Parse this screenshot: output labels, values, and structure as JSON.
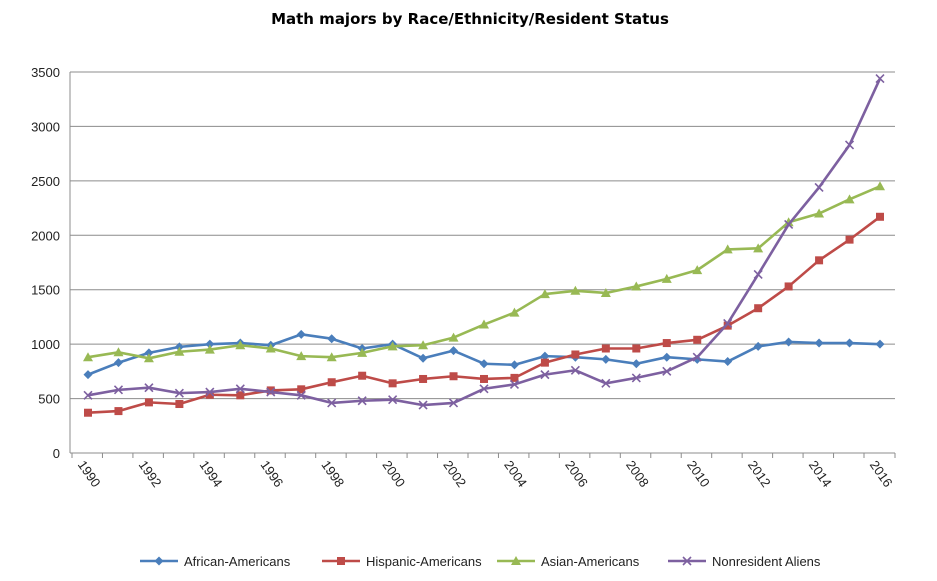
{
  "chart_data": {
    "type": "line",
    "title": "Math majors by Race/Ethnicity/Resident Status",
    "xlabel": "",
    "ylabel": "",
    "ylim": [
      0,
      3500
    ],
    "yticks": [
      "0",
      "500",
      "1000",
      "1500",
      "2000",
      "2500",
      "3000",
      "3500"
    ],
    "x": [
      1990,
      1991,
      1992,
      1993,
      1994,
      1995,
      1996,
      1997,
      1998,
      1999,
      2000,
      2001,
      2002,
      2003,
      2004,
      2005,
      2006,
      2007,
      2008,
      2009,
      2010,
      2011,
      2012,
      2013,
      2014,
      2015,
      2016
    ],
    "xticks": [
      "1990",
      "1992",
      "1994",
      "1996",
      "1998",
      "2000",
      "2002",
      "2004",
      "2006",
      "2008",
      "2010",
      "2012",
      "2014",
      "2016"
    ],
    "grid": true,
    "legend": "bottom",
    "series": [
      {
        "name": "African-Americans",
        "color": "#4a7ebb",
        "marker": "diamond",
        "values": [
          720,
          830,
          920,
          975,
          1000,
          1010,
          990,
          1090,
          1050,
          960,
          1000,
          870,
          940,
          820,
          810,
          890,
          880,
          860,
          820,
          880,
          860,
          840,
          980,
          1020,
          1010,
          1010,
          1000
        ]
      },
      {
        "name": "Hispanic-Americans",
        "color": "#be4b48",
        "marker": "square",
        "values": [
          370,
          385,
          465,
          450,
          535,
          530,
          575,
          585,
          650,
          710,
          640,
          680,
          705,
          680,
          690,
          830,
          905,
          960,
          960,
          1010,
          1040,
          1170,
          1330,
          1530,
          1770,
          1960,
          2170
        ]
      },
      {
        "name": "Asian-Americans",
        "color": "#98b954",
        "marker": "triangle",
        "values": [
          880,
          925,
          870,
          930,
          950,
          990,
          960,
          890,
          880,
          920,
          980,
          990,
          1060,
          1180,
          1290,
          1460,
          1490,
          1470,
          1530,
          1600,
          1680,
          1870,
          1880,
          2120,
          2200,
          2330,
          2450
        ]
      },
      {
        "name": "Nonresident Aliens",
        "color": "#7d60a0",
        "marker": "x",
        "values": [
          530,
          580,
          600,
          550,
          560,
          590,
          560,
          530,
          460,
          480,
          490,
          440,
          460,
          590,
          630,
          720,
          760,
          640,
          690,
          750,
          880,
          1190,
          1640,
          2100,
          2440,
          2830,
          3440
        ]
      }
    ]
  }
}
